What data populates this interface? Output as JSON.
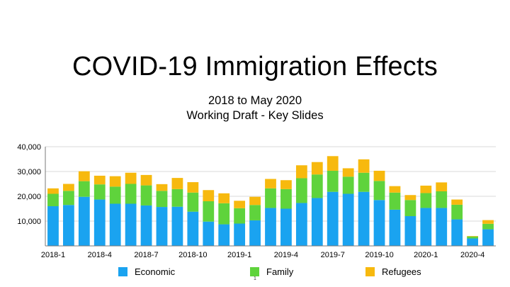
{
  "slide": {
    "title": "COVID-19 Immigration Effects",
    "subtitle_line1": "2018 to May 2020",
    "subtitle_line2": "Working Draft - Key Slides",
    "page_number": "1"
  },
  "colors": {
    "Economic": "#1aa3f0",
    "Family": "#5fd33c",
    "Refugees": "#f7b90e",
    "grid": "#d9d9d9",
    "axis": "#7a7a7a"
  },
  "chart_data": {
    "type": "bar",
    "stacked": true,
    "categories": [
      "2018-1",
      "2018-2",
      "2018-3",
      "2018-4",
      "2018-5",
      "2018-6",
      "2018-7",
      "2018-8",
      "2018-9",
      "2018-10",
      "2018-11",
      "2018-12",
      "2019-1",
      "2019-2",
      "2019-3",
      "2019-4",
      "2019-5",
      "2019-6",
      "2019-7",
      "2019-8",
      "2019-9",
      "2019-10",
      "2019-11",
      "2019-12",
      "2020-1",
      "2020-2",
      "2020-3",
      "2020-4",
      "2020-5"
    ],
    "tick_labels": [
      "2018-1",
      "2018-4",
      "2018-7",
      "2018-10",
      "2019-1",
      "2019-4",
      "2019-7",
      "2019-10",
      "2020-1",
      "2020-4"
    ],
    "series": [
      {
        "name": "Economic",
        "values": [
          16000,
          16500,
          19800,
          18700,
          17000,
          17000,
          16300,
          15700,
          15800,
          13800,
          9800,
          8700,
          9000,
          10300,
          15300,
          15000,
          17300,
          19300,
          21800,
          21000,
          21800,
          18500,
          14600,
          12000,
          15300,
          15300,
          10700,
          3000,
          6700
        ]
      },
      {
        "name": "Family",
        "values": [
          5000,
          5700,
          6300,
          6100,
          6900,
          8000,
          8100,
          6500,
          7100,
          7700,
          8200,
          8500,
          6200,
          6200,
          7900,
          7900,
          10000,
          9500,
          8500,
          6900,
          7700,
          7700,
          6900,
          6500,
          6000,
          6700,
          5900,
          800,
          2200
        ]
      },
      {
        "name": "Refugees",
        "values": [
          2200,
          2800,
          4000,
          3500,
          4200,
          4500,
          4200,
          2700,
          4500,
          4200,
          4500,
          4000,
          3000,
          3300,
          3800,
          3600,
          5200,
          5000,
          5900,
          3400,
          5400,
          4100,
          2600,
          2000,
          3000,
          3600,
          2100,
          200,
          1500
        ]
      }
    ],
    "ylim": [
      0,
      40000
    ],
    "yticks": [
      10000,
      20000,
      30000,
      40000
    ],
    "ytick_labels": [
      "10,000",
      "20,000",
      "30,000",
      "40,000"
    ],
    "grid": true,
    "legend_position": "bottom"
  }
}
